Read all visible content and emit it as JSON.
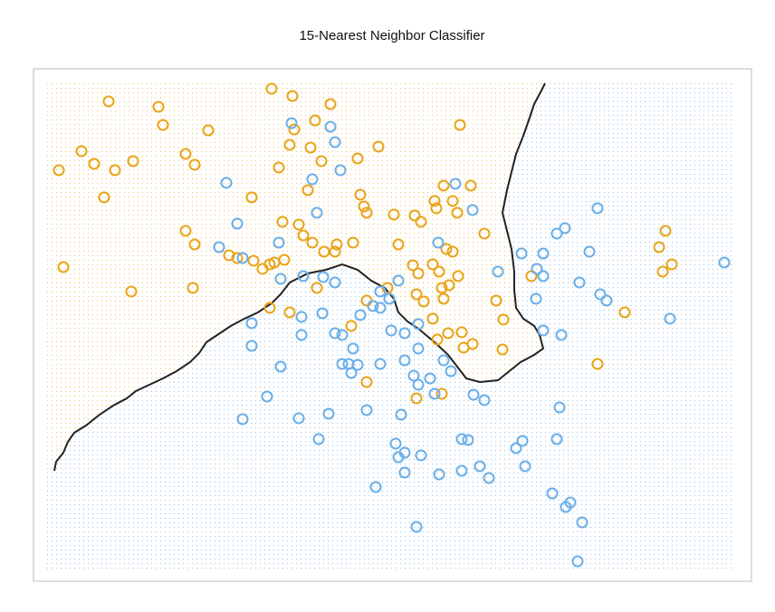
{
  "chart_data": {
    "type": "scatter",
    "title": "15-Nearest Neighbor Classifier",
    "xlim": [
      37,
      830
    ],
    "ylim": [
      58,
      624
    ],
    "series": [
      {
        "color": "#e8a418",
        "x": [
          120,
          175,
          300,
          323,
          365,
          180,
          230,
          348,
          325,
          508,
          90,
          65,
          104,
          127,
          147,
          205,
          215,
          320,
          343,
          355,
          395,
          418,
          308,
          278,
          340,
          115,
          398,
          402,
          405,
          435,
          458,
          480,
          482,
          500,
          505,
          520,
          490,
          465,
          535,
          205,
          215,
          312,
          330,
          335,
          345,
          358,
          372,
          390,
          370,
          440,
          253,
          262,
          280,
          290,
          298,
          303,
          314,
          70,
          145,
          213,
          350,
          428,
          456,
          462,
          478,
          485,
          493,
          500,
          506,
          460,
          468,
          488,
          490,
          496,
          548,
          556,
          587,
          735,
          728,
          742,
          732,
          690,
          660,
          478,
          495,
          510,
          522,
          512,
          483,
          555,
          298,
          320,
          388,
          405,
          460,
          488,
          405
        ],
        "y": [
          588,
          582,
          602,
          594,
          585,
          562,
          556,
          567,
          557,
          562,
          533,
          512,
          519,
          512,
          522,
          530,
          518,
          540,
          537,
          522,
          525,
          538,
          515,
          482,
          490,
          482,
          485,
          472,
          465,
          463,
          462,
          478,
          470,
          478,
          465,
          495,
          495,
          455,
          442,
          445,
          430,
          455,
          452,
          440,
          432,
          422,
          430,
          432,
          422,
          430,
          418,
          415,
          412,
          403,
          408,
          410,
          413,
          405,
          378,
          382,
          382,
          382,
          407,
          398,
          408,
          400,
          425,
          422,
          395,
          375,
          367,
          382,
          370,
          385,
          368,
          347,
          395,
          445,
          427,
          408,
          400,
          355,
          298,
          348,
          332,
          333,
          320,
          316,
          325,
          314,
          360,
          355,
          340,
          278,
          260,
          265,
          368
        ]
      },
      {
        "color": "#6aaee8",
        "x": [
          322,
          365,
          370,
          376,
          345,
          250,
          350,
          262,
          308,
          242,
          268,
          503,
          522,
          484,
          576,
          600,
          615,
          624,
          660,
          651,
          593,
          600,
          550,
          640,
          663,
          670,
          592,
          800,
          740,
          310,
          335,
          370,
          357,
          440,
          420,
          430,
          412,
          333,
          356,
          278,
          398,
          420,
          333,
          370,
          378,
          390,
          278,
          432,
          447,
          462,
          600,
          620,
          310,
          378,
          385,
          395,
          420,
          447,
          462,
          490,
          388,
          457,
          475,
          462,
          480,
          295,
          523,
          535,
          498,
          405,
          443,
          363,
          330,
          268,
          618,
          352,
          437,
          447,
          465,
          440,
          510,
          517,
          577,
          570,
          615,
          580,
          447,
          485,
          510,
          530,
          540,
          415,
          610,
          630,
          625,
          643,
          460,
          638
        ],
        "y": [
          564,
          560,
          543,
          512,
          502,
          498,
          465,
          453,
          432,
          427,
          415,
          497,
          468,
          432,
          420,
          420,
          442,
          448,
          470,
          422,
          403,
          395,
          400,
          388,
          375,
          368,
          370,
          410,
          348,
          392,
          395,
          388,
          394,
          390,
          378,
          370,
          362,
          350,
          354,
          343,
          352,
          360,
          330,
          332,
          330,
          315,
          318,
          335,
          332,
          342,
          335,
          330,
          295,
          298,
          298,
          297,
          298,
          302,
          315,
          302,
          288,
          285,
          282,
          275,
          265,
          262,
          264,
          258,
          290,
          247,
          242,
          243,
          238,
          237,
          250,
          215,
          210,
          200,
          197,
          195,
          215,
          214,
          213,
          205,
          215,
          185,
          178,
          176,
          180,
          185,
          172,
          162,
          155,
          145,
          140,
          123,
          118,
          80
        ]
      }
    ],
    "boundary": {
      "color": "#222222",
      "x": [
        60,
        62,
        70,
        75,
        82,
        95,
        110,
        125,
        140,
        150,
        165,
        180,
        195,
        210,
        220,
        228,
        240,
        255,
        270,
        285,
        300,
        310,
        320,
        340,
        360,
        378,
        395,
        410,
        425,
        435,
        440,
        450,
        462,
        480,
        495,
        505,
        515,
        530,
        550,
        560,
        575,
        590,
        600,
        596,
        590,
        578,
        570,
        568,
        568,
        565,
        560,
        555,
        560,
        565,
        570,
        578,
        585,
        590,
        598,
        602
      ],
      "y": [
        180,
        190,
        200,
        212,
        222,
        230,
        242,
        252,
        260,
        268,
        275,
        282,
        290,
        300,
        310,
        322,
        330,
        340,
        348,
        355,
        365,
        375,
        388,
        398,
        402,
        408,
        402,
        390,
        382,
        370,
        355,
        345,
        337,
        322,
        308,
        295,
        282,
        278,
        280,
        288,
        300,
        308,
        315,
        330,
        340,
        348,
        360,
        380,
        400,
        425,
        445,
        465,
        490,
        510,
        530,
        550,
        570,
        585,
        600,
        608
      ]
    },
    "region_colors": [
      "#f0c060",
      "#8cc0ec"
    ]
  }
}
